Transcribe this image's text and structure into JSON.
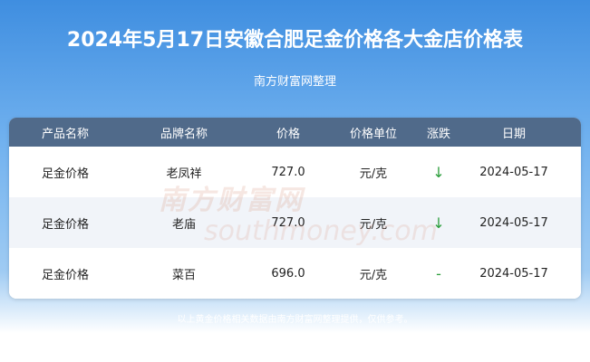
{
  "header": {
    "title": "2024年5月17日安徽合肥足金价格各大金店价格表",
    "subtitle": "南方财富网整理"
  },
  "watermark": {
    "brand": "南方财富网",
    "site": "southmoney.com"
  },
  "table": {
    "columns": [
      "产品名称",
      "品牌名称",
      "价格",
      "价格单位",
      "涨跌",
      "日期"
    ],
    "rows": [
      [
        "足金价格",
        "老凤祥",
        "727.0",
        "元/克",
        "↓",
        "2024-05-17"
      ],
      [
        "足金价格",
        "老庙",
        "727.0",
        "元/克",
        "↓",
        "2024-05-17"
      ],
      [
        "足金价格",
        "菜百",
        "696.0",
        "元/克",
        "-",
        "2024-05-17"
      ]
    ]
  },
  "footer": {
    "note": "以上黄金价格相关数据由南方财富网整理提供，仅供参考。"
  }
}
